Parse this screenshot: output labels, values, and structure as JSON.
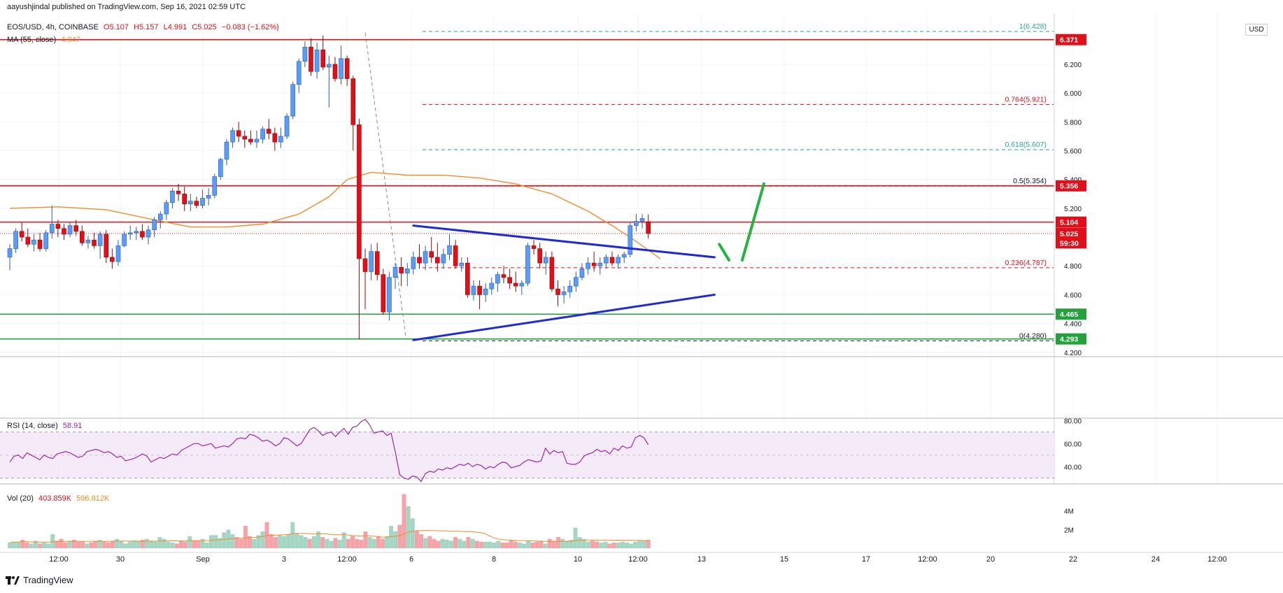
{
  "header": {
    "published": "aayushjindal published on TradingView.com, Sep 16, 2021 02:59 UTC",
    "symbol": "EOS/USD, 4h, COINBASE",
    "open": "O5.107",
    "high": "H5.157",
    "low": "L4.991",
    "close": "C5.025",
    "change": "−0.083 (−1.62%)",
    "ma_label": "MA (55, close)",
    "ma_value": "4.847",
    "currency": "USD"
  },
  "rsi_header": {
    "label": "RSI (14, close)",
    "value": "58.91"
  },
  "vol_header": {
    "label": "Vol (20)",
    "value1": "403.859K",
    "value2": "596.812K"
  },
  "footer": {
    "brand": "TradingView"
  },
  "colors": {
    "up": "#5b9cf6",
    "down": "#e0101a",
    "ma": "#f08c2c",
    "resistance": "#e0101a",
    "support": "#23a13a",
    "triangle": "#1f2ad6",
    "rsi": "#9c27b0",
    "fib_green": "#26a69a"
  },
  "chart_data": {
    "type": "candlestick",
    "price_axis": {
      "ticks": [
        "6.200",
        "6.000",
        "5.800",
        "5.600",
        "5.400",
        "5.200",
        "4.800",
        "4.600",
        "4.400",
        "4.200"
      ],
      "range": [
        4.17,
        6.52
      ]
    },
    "time_axis": [
      "12:00",
      "30",
      "Sep",
      "3",
      "12:00",
      "6",
      "8",
      "10",
      "12:00",
      "13",
      "15",
      "17",
      "12:00",
      "20",
      "22",
      "24",
      "12:00"
    ],
    "price_labels": [
      {
        "text": "6.371",
        "value": 6.371,
        "color": "#e0101a"
      },
      {
        "text": "5.356",
        "value": 5.356,
        "color": "#e0101a"
      },
      {
        "text": "5.104",
        "value": 5.104,
        "color": "#e0101a"
      },
      {
        "text": "5.025",
        "value": 5.025,
        "color": "#e0101a"
      },
      {
        "text": "59:30",
        "value": 4.96,
        "color": "#e0101a"
      },
      {
        "text": "4.465",
        "value": 4.465,
        "color": "#23a13a"
      },
      {
        "text": "4.293",
        "value": 4.293,
        "color": "#23a13a"
      }
    ],
    "fib_levels": [
      {
        "text": "1(6.428)",
        "value": 6.428,
        "color": "#26a69a"
      },
      {
        "text": "0.764(5.921)",
        "value": 5.921,
        "color": "#e0101a"
      },
      {
        "text": "0.618(5.607)",
        "value": 5.607,
        "color": "#26a69a"
      },
      {
        "text": "0.5(5.354)",
        "value": 5.354,
        "color": "#131722"
      },
      {
        "text": "0.236(4.787)",
        "value": 4.787,
        "color": "#e0101a"
      },
      {
        "text": "0(4.280)",
        "value": 4.28,
        "color": "#131722"
      }
    ],
    "candles": [
      [
        4.86,
        4.95,
        4.77,
        4.92
      ],
      [
        4.92,
        5.06,
        4.89,
        5.04
      ],
      [
        5.04,
        5.1,
        4.97,
        5.0
      ],
      [
        5.0,
        5.06,
        4.93,
        4.95
      ],
      [
        4.95,
        5.02,
        4.9,
        4.98
      ],
      [
        4.98,
        5.03,
        4.9,
        4.92
      ],
      [
        4.92,
        5.05,
        4.9,
        5.03
      ],
      [
        5.03,
        5.22,
        4.99,
        5.09
      ],
      [
        5.09,
        5.12,
        5.0,
        5.06
      ],
      [
        5.06,
        5.09,
        4.98,
        5.02
      ],
      [
        5.02,
        5.1,
        5.0,
        5.08
      ],
      [
        5.08,
        5.12,
        5.01,
        5.04
      ],
      [
        5.04,
        5.08,
        4.94,
        4.96
      ],
      [
        4.96,
        5.01,
        4.92,
        4.98
      ],
      [
        4.98,
        5.03,
        4.92,
        4.94
      ],
      [
        4.94,
        5.04,
        4.85,
        5.02
      ],
      [
        5.02,
        5.05,
        4.82,
        4.86
      ],
      [
        4.86,
        4.92,
        4.78,
        4.83
      ],
      [
        4.83,
        4.98,
        4.8,
        4.94
      ],
      [
        4.94,
        5.04,
        4.93,
        5.02
      ],
      [
        5.02,
        5.08,
        4.98,
        5.03
      ],
      [
        5.03,
        5.07,
        4.98,
        5.04
      ],
      [
        5.04,
        5.09,
        4.98,
        5.0
      ],
      [
        5.0,
        5.08,
        4.95,
        5.05
      ],
      [
        5.05,
        5.14,
        5.0,
        5.12
      ],
      [
        5.12,
        5.18,
        5.06,
        5.16
      ],
      [
        5.16,
        5.26,
        5.12,
        5.24
      ],
      [
        5.24,
        5.34,
        5.2,
        5.32
      ],
      [
        5.32,
        5.37,
        5.25,
        5.3
      ],
      [
        5.3,
        5.35,
        5.18,
        5.23
      ],
      [
        5.23,
        5.3,
        5.18,
        5.25
      ],
      [
        5.25,
        5.28,
        5.2,
        5.22
      ],
      [
        5.22,
        5.33,
        5.2,
        5.27
      ],
      [
        5.27,
        5.34,
        5.22,
        5.29
      ],
      [
        5.29,
        5.44,
        5.27,
        5.42
      ],
      [
        5.42,
        5.55,
        5.4,
        5.54
      ],
      [
        5.54,
        5.68,
        5.5,
        5.66
      ],
      [
        5.66,
        5.76,
        5.62,
        5.74
      ],
      [
        5.74,
        5.8,
        5.66,
        5.7
      ],
      [
        5.7,
        5.74,
        5.62,
        5.68
      ],
      [
        5.68,
        5.74,
        5.64,
        5.66
      ],
      [
        5.66,
        5.74,
        5.62,
        5.68
      ],
      [
        5.68,
        5.77,
        5.65,
        5.75
      ],
      [
        5.75,
        5.82,
        5.68,
        5.72
      ],
      [
        5.72,
        5.76,
        5.6,
        5.66
      ],
      [
        5.66,
        5.76,
        5.62,
        5.7
      ],
      [
        5.7,
        5.86,
        5.68,
        5.84
      ],
      [
        5.84,
        6.08,
        5.82,
        6.06
      ],
      [
        6.06,
        6.24,
        6.0,
        6.22
      ],
      [
        6.22,
        6.36,
        6.18,
        6.32
      ],
      [
        6.32,
        6.38,
        6.12,
        6.15
      ],
      [
        6.15,
        6.35,
        6.1,
        6.3
      ],
      [
        6.3,
        6.4,
        6.16,
        6.18
      ],
      [
        6.18,
        6.26,
        5.9,
        6.2
      ],
      [
        6.2,
        6.25,
        6.08,
        6.1
      ],
      [
        6.1,
        6.33,
        6.06,
        6.24
      ],
      [
        6.24,
        6.26,
        6.05,
        6.1
      ],
      [
        6.1,
        6.12,
        5.6,
        5.78
      ],
      [
        5.78,
        5.82,
        4.29,
        4.85
      ],
      [
        4.85,
        4.92,
        4.5,
        4.76
      ],
      [
        4.76,
        4.95,
        4.7,
        4.9
      ],
      [
        4.9,
        4.96,
        4.7,
        4.74
      ],
      [
        4.74,
        4.78,
        4.46,
        4.48
      ],
      [
        4.48,
        4.76,
        4.42,
        4.72
      ],
      [
        4.72,
        4.82,
        4.64,
        4.79
      ],
      [
        4.79,
        4.86,
        4.66,
        4.75
      ],
      [
        4.75,
        4.82,
        4.66,
        4.78
      ],
      [
        4.78,
        4.9,
        4.74,
        4.86
      ],
      [
        4.86,
        4.95,
        4.78,
        4.82
      ],
      [
        4.82,
        4.94,
        4.77,
        4.9
      ],
      [
        4.9,
        5.0,
        4.82,
        4.86
      ],
      [
        4.86,
        4.96,
        4.76,
        4.82
      ],
      [
        4.82,
        4.92,
        4.78,
        4.88
      ],
      [
        4.88,
        5.02,
        4.84,
        4.94
      ],
      [
        4.94,
        4.98,
        4.78,
        4.8
      ],
      [
        4.8,
        4.86,
        4.76,
        4.82
      ],
      [
        4.82,
        4.86,
        4.58,
        4.6
      ],
      [
        4.6,
        4.7,
        4.56,
        4.66
      ],
      [
        4.66,
        4.7,
        4.5,
        4.6
      ],
      [
        4.6,
        4.68,
        4.55,
        4.64
      ],
      [
        4.64,
        4.72,
        4.6,
        4.68
      ],
      [
        4.68,
        4.76,
        4.62,
        4.74
      ],
      [
        4.74,
        4.8,
        4.68,
        4.72
      ],
      [
        4.72,
        4.78,
        4.64,
        4.68
      ],
      [
        4.68,
        4.76,
        4.62,
        4.66
      ],
      [
        4.66,
        4.7,
        4.6,
        4.68
      ],
      [
        4.68,
        4.96,
        4.66,
        4.94
      ],
      [
        4.94,
        4.98,
        4.88,
        4.92
      ],
      [
        4.92,
        4.96,
        4.78,
        4.82
      ],
      [
        4.82,
        4.9,
        4.74,
        4.86
      ],
      [
        4.86,
        4.9,
        4.62,
        4.64
      ],
      [
        4.64,
        4.7,
        4.52,
        4.6
      ],
      [
        4.6,
        4.66,
        4.54,
        4.62
      ],
      [
        4.62,
        4.7,
        4.58,
        4.66
      ],
      [
        4.66,
        4.76,
        4.62,
        4.72
      ],
      [
        4.72,
        4.82,
        4.7,
        4.78
      ],
      [
        4.78,
        4.86,
        4.74,
        4.82
      ],
      [
        4.82,
        4.9,
        4.76,
        4.8
      ],
      [
        4.8,
        4.86,
        4.74,
        4.82
      ],
      [
        4.82,
        4.88,
        4.78,
        4.86
      ],
      [
        4.86,
        4.9,
        4.8,
        4.82
      ],
      [
        4.82,
        4.88,
        4.78,
        4.86
      ],
      [
        4.86,
        4.9,
        4.82,
        4.88
      ],
      [
        4.88,
        5.1,
        4.86,
        5.08
      ],
      [
        5.08,
        5.16,
        5.04,
        5.11
      ],
      [
        5.11,
        5.16,
        5.06,
        5.13
      ],
      [
        5.107,
        5.157,
        4.991,
        5.025
      ]
    ],
    "ma55_points": [
      [
        0,
        5.2
      ],
      [
        8,
        5.21
      ],
      [
        16,
        5.19
      ],
      [
        24,
        5.12
      ],
      [
        30,
        5.07
      ],
      [
        36,
        5.07
      ],
      [
        42,
        5.09
      ],
      [
        48,
        5.16
      ],
      [
        53,
        5.28
      ],
      [
        56,
        5.4
      ],
      [
        60,
        5.45
      ],
      [
        66,
        5.43
      ],
      [
        72,
        5.43
      ],
      [
        78,
        5.41
      ],
      [
        84,
        5.37
      ],
      [
        90,
        5.3
      ],
      [
        96,
        5.18
      ],
      [
        100,
        5.08
      ],
      [
        104,
        4.97
      ],
      [
        108,
        4.85
      ]
    ],
    "annotations": {
      "triangle_upper": [
        [
          67,
          5.08
        ],
        [
          117,
          4.86
        ]
      ],
      "triangle_lower": [
        [
          67,
          4.285
        ],
        [
          117,
          4.6
        ]
      ],
      "green_arrow_down": [
        [
          117.8,
          4.95
        ],
        [
          119.4,
          4.84
        ]
      ],
      "green_arrow_up": [
        [
          121.6,
          4.84
        ],
        [
          125.2,
          5.37
        ]
      ],
      "fib_dashed_diagonal": [
        [
          59,
          6.42
        ],
        [
          65.8,
          4.29
        ]
      ]
    },
    "rsi": {
      "ticks": [
        "80.00",
        "60.00",
        "40.00"
      ],
      "range": [
        25,
        82
      ],
      "upper_band": 70,
      "lower_band": 30,
      "values": [
        44,
        49,
        50,
        47,
        52,
        50,
        48,
        46,
        50,
        48,
        47,
        51,
        52,
        53,
        52,
        50,
        48,
        49,
        53,
        54,
        55,
        54,
        52,
        53,
        51,
        48,
        49,
        45,
        46,
        47,
        49,
        51,
        49,
        44,
        46,
        48,
        47,
        49,
        51,
        50,
        54,
        56,
        58,
        60,
        60,
        58,
        59,
        60,
        56,
        57,
        58,
        57,
        60,
        64,
        65,
        64,
        68,
        67,
        65,
        62,
        63,
        61,
        58,
        60,
        65,
        64,
        61,
        58,
        60,
        66,
        72,
        74,
        71,
        67,
        69,
        70,
        66,
        70,
        73,
        68,
        74,
        75,
        79,
        81,
        76,
        69,
        70,
        71,
        67,
        69,
        52,
        33,
        30,
        29,
        32,
        31,
        27,
        34,
        36,
        35,
        38,
        37,
        39,
        38,
        40,
        42,
        41,
        43,
        40,
        42,
        41,
        38,
        40,
        39,
        42,
        44,
        43,
        39,
        40,
        41,
        44,
        46,
        45,
        44,
        45,
        56,
        51,
        54,
        52,
        53,
        43,
        42,
        42,
        44,
        49,
        51,
        52,
        55,
        53,
        54,
        51,
        56,
        54,
        58,
        56,
        57,
        65,
        67,
        65,
        59
      ]
    },
    "volume": {
      "ticks": [
        "4M",
        "2M"
      ],
      "max": 6,
      "values": [
        0.6,
        0.7,
        0.7,
        0.9,
        0.6,
        0.5,
        0.8,
        0.5,
        0.6,
        0.5,
        1.5,
        0.8,
        1.0,
        0.6,
        0.8,
        0.9,
        0.7,
        0.7,
        0.5,
        0.6,
        0.8,
        0.9,
        0.7,
        0.6,
        0.8,
        1.0,
        0.8,
        0.5,
        0.7,
        0.8,
        0.8,
        0.9,
        1.0,
        0.8,
        0.7,
        1.2,
        1.0,
        0.7,
        0.6,
        0.5,
        0.8,
        0.7,
        1.3,
        0.8,
        0.8,
        1.0,
        0.6,
        1.4,
        1.4,
        1.1,
        1.7,
        2.0,
        1.5,
        1.2,
        1.0,
        2.4,
        1.3,
        1.0,
        1.4,
        1.8,
        2.8,
        1.5,
        1.2,
        1.4,
        1.3,
        1.5,
        2.8,
        1.6,
        1.4,
        1.2,
        1.0,
        1.3,
        1.8,
        1.2,
        1.0,
        0.8,
        1.1,
        0.9,
        1.7,
        1.0,
        1.3,
        1.0,
        0.9,
        1.8,
        1.2,
        1.0,
        1.3,
        1.0,
        1.3,
        2.4,
        1.8,
        2.5,
        5.8,
        4.5,
        3.2,
        1.9,
        1.5,
        1.1,
        1.3,
        1.0,
        0.8,
        1.0,
        0.9,
        0.8,
        1.2,
        1.0,
        0.8,
        1.2,
        1.0,
        0.8,
        0.7,
        0.7,
        0.7,
        0.6,
        0.8,
        0.6,
        0.6,
        0.9,
        0.7,
        0.6,
        0.5,
        0.8,
        0.6,
        0.7,
        0.8,
        0.5,
        1.0,
        0.8,
        1.2,
        1.0,
        0.8,
        0.9,
        2.2,
        1.2,
        1.0,
        0.7,
        0.8,
        0.7,
        0.6,
        0.7,
        0.5,
        0.6,
        0.6,
        0.7,
        0.6,
        0.5,
        0.7,
        0.8,
        0.8,
        0.9
      ]
    }
  }
}
